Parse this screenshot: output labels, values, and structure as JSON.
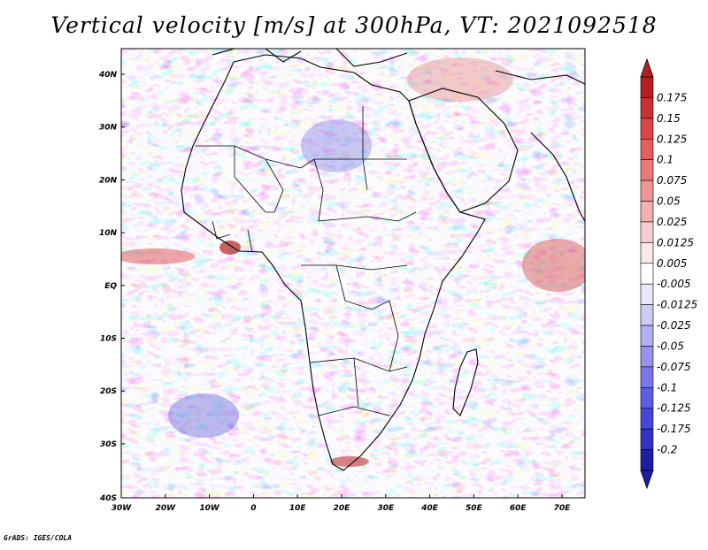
{
  "title": "Vertical velocity [m/s] at 300hPa, VT: 2021092518",
  "credit": "GrADS: IGES/COLA",
  "map": {
    "lon_ticks": [
      "30W",
      "20W",
      "10W",
      "0",
      "10E",
      "20E",
      "30E",
      "40E",
      "50E",
      "60E",
      "70E"
    ],
    "lat_ticks": [
      "40N",
      "30N",
      "20N",
      "10N",
      "EQ",
      "10S",
      "20S",
      "30S",
      "40S"
    ],
    "extent": {
      "lon_min": -30,
      "lon_max": 75,
      "lat_min": -40,
      "lat_max": 45
    },
    "field_colors": {
      "positive": "#e88a8a",
      "negative": "#8f8fe8",
      "neutral": "#ffffff"
    }
  },
  "colorbar": {
    "labels": [
      "0.175",
      "0.15",
      "0.125",
      "0.1",
      "0.075",
      "0.05",
      "0.025",
      "0.0125",
      "0.005",
      "-0.005",
      "-0.0125",
      "-0.025",
      "-0.05",
      "-0.075",
      "-0.1",
      "-0.125",
      "-0.175",
      "-0.2"
    ],
    "colors": [
      "#b41e1e",
      "#c83232",
      "#dc4646",
      "#e45e5e",
      "#ec7878",
      "#f09494",
      "#f4b0b0",
      "#f8cccc",
      "#fce8e8",
      "#ffffff",
      "#e8e8fc",
      "#ccccf8",
      "#b0b0f4",
      "#9494f0",
      "#7878ec",
      "#5e5ee4",
      "#4646dc",
      "#3232c8",
      "#1e1ea0"
    ]
  }
}
